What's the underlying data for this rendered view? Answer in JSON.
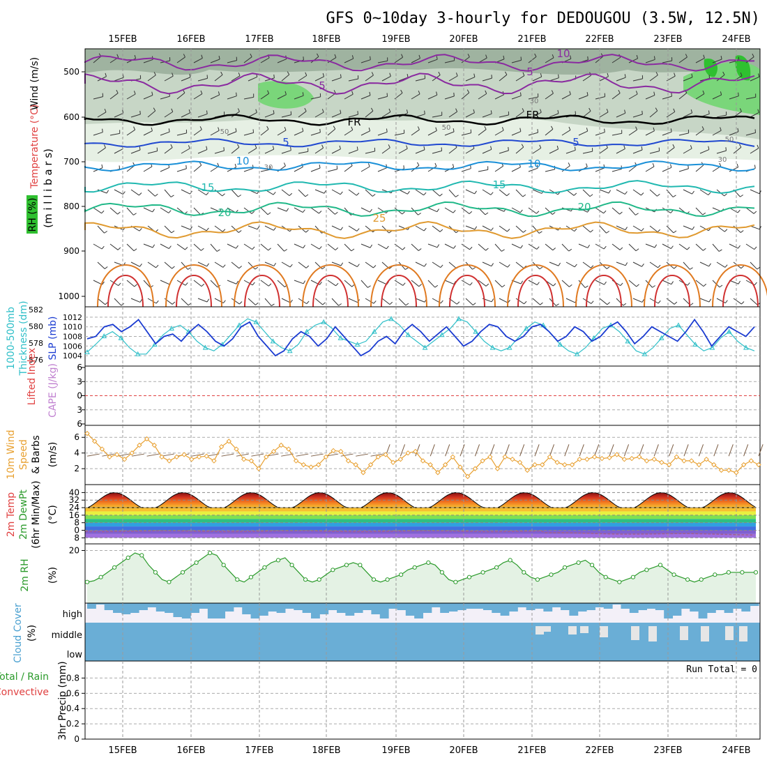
{
  "title": "GFS 0~10day 3-hourly for DEDOUGOU (3.5W, 12.5N)",
  "dates": [
    "15FEB",
    "16FEB",
    "17FEB",
    "18FEB",
    "19FEB",
    "20FEB",
    "21FEB",
    "22FEB",
    "23FEB",
    "24FEB"
  ],
  "panels": {
    "upper": {
      "ylabel_main": "(m i l l i b a r s)",
      "label_wind": "Wind (m/s)",
      "label_temp": "Temperature (°C)",
      "label_rh": "RH (%)",
      "ticks": [
        500,
        600,
        700,
        800,
        900,
        1000
      ],
      "contour_labels": [
        "-10",
        "-5",
        "-5",
        "FR",
        "FR",
        "-5",
        "-5",
        "-10",
        "-10",
        "-15",
        "-15",
        "-20",
        "-20",
        "-25",
        "30",
        "30",
        "50",
        "30",
        "50",
        "30"
      ]
    },
    "slp": {
      "label_thick": "1000-500mb",
      "label_thick2": "Thickness (dm)",
      "label_slp": "SLP (mb)",
      "left_ticks": [
        "582",
        "580",
        "578",
        "576"
      ],
      "right_ticks": [
        "1012",
        "1010",
        "1008",
        "1006",
        "1004"
      ]
    },
    "cape": {
      "label_li": "Lifted Index",
      "label_cape": "CAPE (J/kg)",
      "ticks": [
        "-6",
        "-3",
        "0",
        "3",
        "6"
      ]
    },
    "wind10": {
      "label1": "10m Wind",
      "label2": "Speed",
      "label3": "& Barbs",
      "unit": "(m/s)",
      "ticks": [
        "6",
        "4",
        "2"
      ]
    },
    "temp2m": {
      "label1": "2m Temp",
      "label2": "2m DewPt",
      "label3": "(6hr Min/Max)",
      "unit": "(°C)",
      "ticks": [
        "40",
        "32",
        "24",
        "16",
        "8",
        "0",
        "-8"
      ]
    },
    "rh2m": {
      "label": "2m RH",
      "unit": "(%)",
      "ticks": [
        "20"
      ]
    },
    "cloud": {
      "label": "Cloud Cover",
      "unit": "(%)",
      "levels": [
        "high",
        "middle",
        "low"
      ]
    },
    "precip": {
      "label1": "Total / Rain",
      "label2": "Convective",
      "label3": "3hr Precip (mm)",
      "ticks": [
        "0.8",
        "0.6",
        "0.4",
        "0.2",
        "0"
      ],
      "run_total": "Run Total = 0"
    }
  },
  "colors": {
    "slp": "#1a3bd1",
    "thickness": "#2fbfc8",
    "wind": "#e8a030",
    "rh": "#2a9a2a",
    "cloud": "#6aaed6",
    "cloud_bg": "#f3f0f8",
    "lifted": "#e04040",
    "cape": "#c080d0"
  },
  "chart_data": [
    {
      "type": "line",
      "name": "slp",
      "x_start": "2024-02-14T12",
      "step_hours": 3,
      "ylabel": "SLP (mb)",
      "ylim": [
        1003,
        1013
      ],
      "values": [
        1007.5,
        1008,
        1010,
        1010.5,
        1009,
        1010,
        1011.5,
        1009,
        1006.5,
        1008,
        1008.5,
        1007,
        1009,
        1010.5,
        1009,
        1007,
        1006,
        1007.5,
        1010,
        1011,
        1008,
        1006,
        1004,
        1005,
        1007.5,
        1009,
        1008,
        1006,
        1007.5,
        1010,
        1008,
        1006,
        1004,
        1005,
        1007,
        1008,
        1006.5,
        1009,
        1010.5,
        1009,
        1007,
        1008.5,
        1010,
        1008,
        1006,
        1007,
        1009,
        1010.5,
        1010,
        1008,
        1007,
        1008,
        1010,
        1010.5,
        1009,
        1007,
        1008,
        1010,
        1009,
        1007,
        1008,
        1010,
        1011,
        1009,
        1006.5,
        1008,
        1010,
        1009,
        1008,
        1007,
        1009,
        1011.5,
        1009,
        1006,
        1008,
        1010,
        1009,
        1008,
        1010
      ]
    },
    {
      "type": "line",
      "name": "thickness",
      "ylabel": "1000-500mb Thickness (dm)",
      "ylim": [
        575,
        582.5
      ],
      "values": [
        576.3,
        577.5,
        578.8,
        579.5,
        578.5,
        577,
        576,
        576,
        577.5,
        579,
        580,
        580.5,
        579.5,
        578,
        577,
        576.5,
        577.5,
        579,
        580.5,
        581.5,
        581,
        579.5,
        578,
        577,
        576.5,
        577.5,
        579.5,
        580.5,
        581,
        580,
        578.5,
        578,
        577.5,
        578,
        579.5,
        581,
        581.5,
        580.5,
        579,
        578,
        577,
        578,
        579,
        580,
        581.5,
        581,
        579.5,
        578,
        577,
        576.5,
        577,
        578.5,
        580,
        581,
        580.5,
        579,
        577.5,
        576.5,
        576,
        577,
        578.5,
        580,
        580.5,
        579.5,
        578,
        576.5,
        576,
        577,
        578.5,
        580,
        580.5,
        579,
        577.5,
        576.5,
        577,
        578.5,
        579.5,
        578,
        577,
        576.5
      ]
    },
    {
      "type": "line",
      "name": "wind10",
      "ylabel": "(m/s)",
      "ylim": [
        0.5,
        7
      ],
      "values": [
        6.5,
        5.5,
        4.5,
        3.5,
        3.8,
        3.2,
        4,
        5,
        5.8,
        5,
        3.5,
        3,
        3.5,
        3.8,
        3.2,
        3.5,
        3.6,
        3,
        4.8,
        5.5,
        4.5,
        3.2,
        3,
        2,
        3.5,
        4.2,
        5,
        4.5,
        3,
        2.5,
        2.2,
        2.5,
        3.5,
        4.3,
        4.2,
        3,
        2.5,
        1.5,
        2.5,
        3.5,
        3.8,
        2.8,
        3.2,
        4,
        4.2,
        3,
        2.5,
        1.5,
        2.5,
        3.5,
        2.2,
        1,
        2,
        3,
        3.5,
        2,
        3.5,
        3.2,
        2.8,
        1.8,
        2.5,
        2.5,
        3.5,
        2.8,
        2.5,
        2.5,
        3.2,
        3.2,
        3.5,
        3.3,
        3.4,
        3.8,
        3.2,
        3.3,
        3.5,
        3,
        3.2,
        2.8,
        2.5,
        3.5,
        3,
        3,
        2.5,
        3.2,
        2.5,
        1.8,
        1.8,
        1.5,
        2.5,
        3,
        2.5
      ]
    },
    {
      "type": "line",
      "name": "rh2m",
      "ylabel": "(%)",
      "values": [
        7,
        7.5,
        9,
        11,
        13,
        15,
        17,
        19,
        18,
        14,
        11,
        8,
        7,
        9,
        11,
        13,
        15,
        17,
        19,
        18,
        14,
        11,
        8,
        7,
        9,
        11,
        13,
        15,
        16,
        17,
        14,
        11,
        8,
        7,
        8,
        10,
        12,
        13,
        14,
        15,
        14,
        11,
        8,
        7,
        8,
        9,
        10,
        12,
        13,
        14,
        15,
        14,
        11,
        8,
        7,
        8,
        9,
        10,
        11,
        12,
        13,
        15,
        16,
        14,
        11,
        9,
        8,
        9,
        10,
        11,
        13,
        14,
        15,
        16,
        14,
        11,
        9,
        8,
        7,
        8,
        9,
        11,
        12,
        13,
        14,
        12,
        10,
        9,
        8,
        7,
        8,
        9,
        10,
        10,
        11,
        11,
        11,
        11,
        11
      ]
    }
  ]
}
